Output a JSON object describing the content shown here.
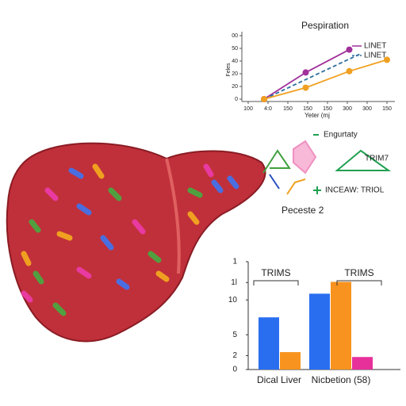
{
  "chart_data": [
    {
      "type": "line",
      "title": "Pespiration",
      "ylabel": "Feles",
      "xlabel": "Yeter (mj",
      "xlim": [
        0,
        7
      ],
      "ylim": [
        0,
        5
      ],
      "xticks": [
        {
          "value": 0,
          "label": "100"
        },
        {
          "value": 1,
          "label": "4:0"
        },
        {
          "value": 2,
          "label": "150"
        },
        {
          "value": 3,
          "label": "150"
        },
        {
          "value": 4,
          "label": "150"
        },
        {
          "value": 5,
          "label": "300"
        },
        {
          "value": 6,
          "label": "300"
        },
        {
          "value": 7,
          "label": "150"
        }
      ],
      "yticks": [
        {
          "value": 0,
          "label": "0"
        },
        {
          "value": 1,
          "label": "20"
        },
        {
          "value": 2,
          "label": "20"
        },
        {
          "value": 3,
          "label": "40"
        },
        {
          "value": 4,
          "label": "50"
        },
        {
          "value": 5,
          "label": "00"
        }
      ],
      "series": [
        {
          "name": "LINET",
          "color": "#a0309a",
          "x": [
            0.8,
            2.9,
            5.1
          ],
          "values": [
            0,
            2.1,
            3.9
          ],
          "markers": true
        },
        {
          "name": "LINET",
          "color": "#2f6f9f",
          "x": [
            0.8,
            5.7
          ],
          "values": [
            0,
            3.6
          ],
          "dashed": true
        },
        {
          "color": "#f0a020",
          "x": [
            0.8,
            2.9,
            5.1,
            7.0
          ],
          "values": [
            0,
            0.9,
            2.2,
            3.1
          ],
          "markers": true
        }
      ]
    },
    {
      "type": "bar",
      "categories": [
        "Dical Liver",
        "Nicbetion (58)"
      ],
      "ylim": [
        0,
        15.5
      ],
      "yticks": [
        0,
        2,
        5,
        10,
        {
          "value": 12.5,
          "label": "1l"
        },
        {
          "value": 15.5,
          "label": "1"
        }
      ],
      "annotations": [
        "TRIMS",
        "TRIMS"
      ],
      "series": [
        {
          "color": "#2a6ef0",
          "values": [
            7.5,
            10.9
          ]
        },
        {
          "color": "#f7931e",
          "values": [
            2.5,
            12.6
          ]
        },
        {
          "color": "#e8309a",
          "values": [
            null,
            1.8
          ]
        }
      ]
    }
  ],
  "diagram": {
    "labels": [
      "Engurtaty",
      "TRIM7",
      "INCEAW: TRIOL",
      "Peceste 2"
    ]
  }
}
